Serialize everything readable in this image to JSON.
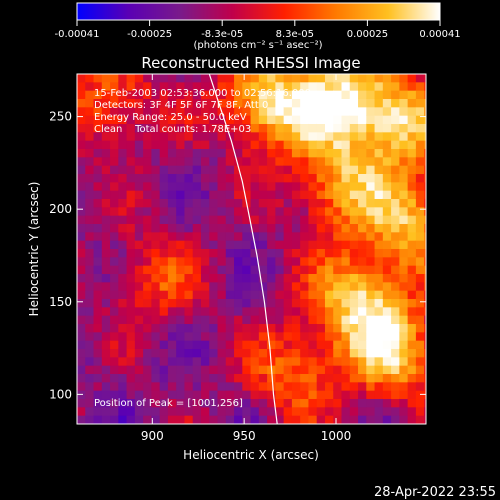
{
  "colors": {
    "background": "#000000",
    "foreground": "#ffffff",
    "colorbar_stops": [
      "#0000ff",
      "#5a00b4",
      "#7a1a8a",
      "#c0004a",
      "#ff2000",
      "#ff7a00",
      "#ffc020",
      "#ffffff"
    ]
  },
  "colorbar": {
    "tick_labels": [
      "-0.00041",
      "-0.00025",
      "-8.3e-05",
      "8.3e-05",
      "0.00025",
      "0.00041"
    ],
    "units_label": "(photons cm⁻² s⁻¹ asec⁻²)",
    "range": [
      -0.00041,
      0.00041
    ]
  },
  "annotations": {
    "time_range": "15-Feb-2003 02:53:36.000 to 02:56:16.000",
    "detectors": "Detectors: 3F 4F 5F 6F 7F 8F, Att 0",
    "energy_range": "Energy Range: 25.0 - 50.0 keV",
    "clean_info": "Clean    Total counts: 1.78E+03",
    "peak_position": "Position of Peak = [1001,256]"
  },
  "footer": {
    "timestamp": "28-Apr-2022 23:55"
  },
  "chart_data": {
    "type": "heatmap",
    "title": "Reconstructed RHESSI Image",
    "xlabel": "Heliocentric X (arcsec)",
    "ylabel": "Heliocentric Y (arcsec)",
    "xlim": [
      859,
      1049
    ],
    "ylim": [
      84,
      273
    ],
    "x_ticks": [
      900,
      950,
      1000
    ],
    "y_ticks": [
      100,
      150,
      200,
      250
    ],
    "value_range": [
      -0.00041,
      0.00041
    ],
    "peak": [
      1001,
      256
    ],
    "bright_regions": [
      {
        "center": [
          960,
          255
        ],
        "level": 1.0
      },
      {
        "center": [
          1001,
          256
        ],
        "level": 1.0
      },
      {
        "center": [
          1035,
          245
        ],
        "level": 0.85
      },
      {
        "center": [
          1000,
          210
        ],
        "level": 0.75
      },
      {
        "center": [
          1010,
          150
        ],
        "level": 0.9
      },
      {
        "center": [
          1030,
          120
        ],
        "level": 0.85
      },
      {
        "center": [
          1040,
          190
        ],
        "level": 0.8
      },
      {
        "center": [
          975,
          110
        ],
        "level": 0.6
      },
      {
        "center": [
          900,
          160
        ],
        "level": 0.45
      },
      {
        "center": [
          875,
          255
        ],
        "level": 0.55
      }
    ],
    "limb_curve": [
      [
        931,
        273
      ],
      [
        936,
        258
      ],
      [
        943,
        237
      ],
      [
        949,
        215
      ],
      [
        953,
        195
      ],
      [
        957,
        175
      ],
      [
        961,
        150
      ],
      [
        964,
        125
      ],
      [
        966,
        100
      ],
      [
        968,
        84
      ]
    ],
    "grid": false
  }
}
